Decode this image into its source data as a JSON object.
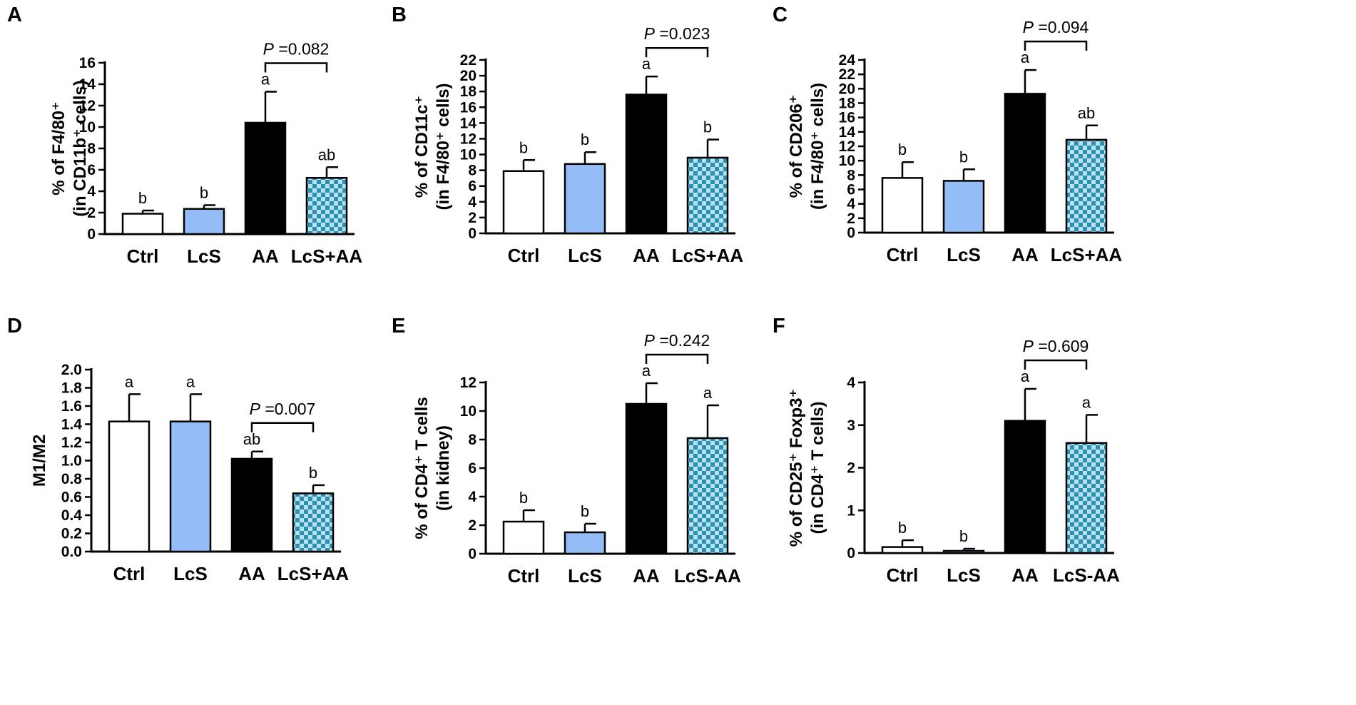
{
  "colors": {
    "ctrl": "#ffffff",
    "lcs": "#94bdf7",
    "aa": "#000000",
    "lcsaa_dark": "#2e8fb0",
    "lcsaa_light": "#b7e3f1",
    "axis": "#000000"
  },
  "chart_data": [
    {
      "id": "A",
      "type": "bar",
      "panel_label": "A",
      "ylabel_line1": "% of F4/80⁺",
      "ylabel_line2": "(in CD11b⁺ cells)",
      "categories": [
        "Ctrl",
        "LcS",
        "AA",
        "LcS+AA"
      ],
      "values": [
        1.9,
        2.35,
        10.4,
        5.25
      ],
      "errors": [
        0.3,
        0.35,
        2.9,
        1.0
      ],
      "sig_letters": [
        "b",
        "b",
        "a",
        "ab"
      ],
      "ylim": [
        0,
        16
      ],
      "ticks": [
        0,
        2,
        4,
        6,
        8,
        10,
        12,
        14,
        16
      ],
      "tick_labels": [
        "0",
        "2",
        "4",
        "6",
        "8",
        "10",
        "12",
        "14",
        "16"
      ],
      "pvalue_label": "P",
      "pvalue_text": " =0.082",
      "bracket": [
        2,
        3
      ]
    },
    {
      "id": "B",
      "type": "bar",
      "panel_label": "B",
      "ylabel_line1": "% of CD11c⁺",
      "ylabel_line2": "(in F4/80⁺ cells)",
      "categories": [
        "Ctrl",
        "LcS",
        "AA",
        "LcS+AA"
      ],
      "values": [
        7.9,
        8.8,
        17.6,
        9.6
      ],
      "errors": [
        1.4,
        1.5,
        2.3,
        2.3
      ],
      "sig_letters": [
        "b",
        "b",
        "a",
        "b"
      ],
      "ylim": [
        0,
        22
      ],
      "ticks": [
        0,
        2,
        4,
        6,
        8,
        10,
        12,
        14,
        16,
        18,
        20,
        22
      ],
      "tick_labels": [
        "0",
        "2",
        "4",
        "6",
        "8",
        "10",
        "12",
        "14",
        "16",
        "18",
        "20",
        "22"
      ],
      "pvalue_label": "P",
      "pvalue_text": " =0.023",
      "bracket": [
        2,
        3
      ]
    },
    {
      "id": "C",
      "type": "bar",
      "panel_label": "C",
      "ylabel_line1": "% of CD206⁺",
      "ylabel_line2": "(in F4/80⁺ cells)",
      "categories": [
        "Ctrl",
        "LcS",
        "AA",
        "LcS+AA"
      ],
      "values": [
        7.6,
        7.2,
        19.3,
        12.9
      ],
      "errors": [
        2.2,
        1.6,
        3.3,
        2.0
      ],
      "sig_letters": [
        "b",
        "b",
        "a",
        "ab"
      ],
      "ylim": [
        0,
        24
      ],
      "ticks": [
        0,
        2,
        4,
        6,
        8,
        10,
        12,
        14,
        16,
        18,
        20,
        22,
        24
      ],
      "tick_labels": [
        "0",
        "2",
        "4",
        "6",
        "8",
        "10",
        "12",
        "14",
        "16",
        "18",
        "20",
        "22",
        "24"
      ],
      "pvalue_label": "P",
      "pvalue_text": " =0.094",
      "bracket": [
        2,
        3
      ]
    },
    {
      "id": "D",
      "type": "bar",
      "panel_label": "D",
      "ylabel_line1": "M1/M2",
      "ylabel_line2": "",
      "categories": [
        "Ctrl",
        "LcS",
        "AA",
        "LcS+AA"
      ],
      "values": [
        1.43,
        1.43,
        1.02,
        0.64
      ],
      "errors": [
        0.3,
        0.3,
        0.08,
        0.09
      ],
      "sig_letters": [
        "a",
        "a",
        "ab",
        "b"
      ],
      "ylim": [
        0,
        2.0
      ],
      "ticks": [
        0,
        0.2,
        0.4,
        0.6,
        0.8,
        1.0,
        1.2,
        1.4,
        1.6,
        1.8,
        2.0
      ],
      "tick_labels": [
        "0.0",
        "0.2",
        "0.4",
        "0.6",
        "0.8",
        "1.0",
        "1.2",
        "1.4",
        "1.6",
        "1.8",
        "2.0"
      ],
      "pvalue_label": "P",
      "pvalue_text": " =0.007",
      "bracket": [
        2,
        3
      ]
    },
    {
      "id": "E",
      "type": "bar",
      "panel_label": "E",
      "ylabel_line1": "% of CD4⁺ T cells",
      "ylabel_line2": "(in kidney)",
      "categories": [
        "Ctrl",
        "LcS",
        "AA",
        "LcS-AA"
      ],
      "values": [
        2.25,
        1.5,
        10.5,
        8.1
      ],
      "errors": [
        0.8,
        0.6,
        1.45,
        2.3
      ],
      "sig_letters": [
        "b",
        "b",
        "a",
        "a"
      ],
      "ylim": [
        0,
        12
      ],
      "ticks": [
        0,
        2,
        4,
        6,
        8,
        10,
        12
      ],
      "tick_labels": [
        "0",
        "2",
        "4",
        "6",
        "8",
        "10",
        "12"
      ],
      "pvalue_label": "P",
      "pvalue_text": " =0.242",
      "bracket": [
        2,
        3
      ]
    },
    {
      "id": "F",
      "type": "bar",
      "panel_label": "F",
      "ylabel_line1": "% of CD25⁺ Foxp3⁺",
      "ylabel_line2": "(in CD4⁺ T cells)",
      "categories": [
        "Ctrl",
        "LcS",
        "AA",
        "LcS-AA"
      ],
      "values": [
        0.14,
        0.05,
        3.1,
        2.58
      ],
      "errors": [
        0.16,
        0.05,
        0.75,
        0.66
      ],
      "sig_letters": [
        "b",
        "b",
        "a",
        "a"
      ],
      "ylim": [
        0,
        4
      ],
      "ticks": [
        0,
        1,
        2,
        3,
        4
      ],
      "tick_labels": [
        "0",
        "1",
        "2",
        "3",
        "4"
      ],
      "pvalue_label": "P",
      "pvalue_text": " =0.609",
      "bracket": [
        2,
        3
      ]
    }
  ]
}
